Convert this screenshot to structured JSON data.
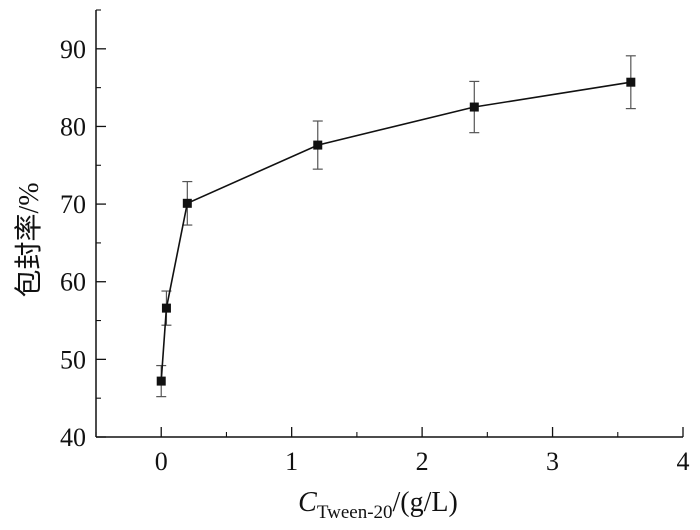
{
  "chart_data": {
    "type": "scatter",
    "title": "",
    "xlabel": {
      "symbol": "C",
      "subscript": "Tween-20",
      "unit": "/(g/L)"
    },
    "ylabel": "包封率/%",
    "xlim": [
      -0.5,
      4
    ],
    "ylim": [
      40,
      95
    ],
    "xticks": [
      0,
      1,
      2,
      3,
      4
    ],
    "yticks": [
      40,
      50,
      60,
      70,
      80,
      90
    ],
    "grid": false,
    "legend": "none",
    "series": [
      {
        "x": [
          0,
          0.04,
          0.2,
          1.2,
          2.4,
          3.6
        ],
        "y": [
          47.2,
          56.6,
          70.1,
          77.6,
          82.5,
          85.7
        ],
        "err": [
          2.0,
          2.2,
          2.8,
          3.1,
          3.3,
          3.4
        ]
      }
    ],
    "colors": {
      "line": "#111111",
      "marker": "#111111",
      "errorbar": "#555555",
      "axis": "#111111"
    }
  }
}
